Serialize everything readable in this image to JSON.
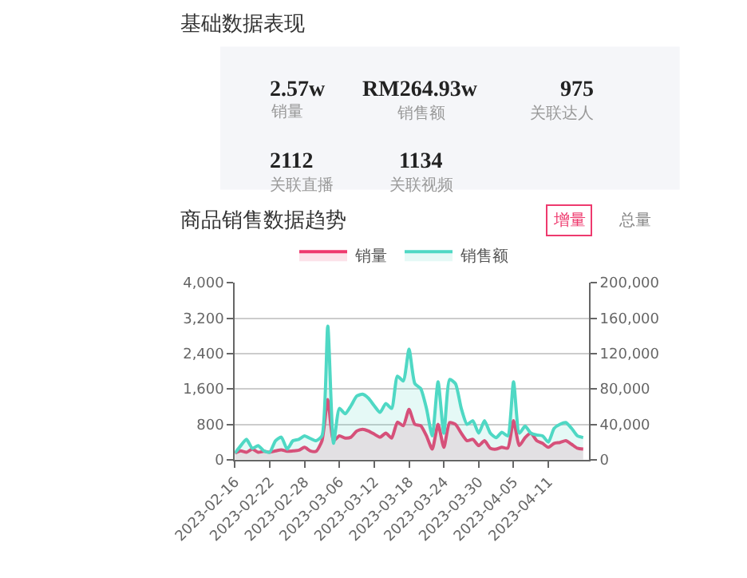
{
  "chart_data": [
    {
      "type": "other",
      "title": "基础数据表现",
      "annotations": [
        "2.57w",
        "销量",
        "RM264.93w",
        "销售额",
        "975",
        "关联达人",
        "2112",
        "关联直播",
        "1134",
        "关联视频"
      ]
    },
    {
      "type": "area",
      "title": "商品销售数据趋势",
      "annotations": [
        "增量",
        "总量"
      ],
      "x": [
        "2023-02-16",
        "2023-02-17",
        "2023-02-18",
        "2023-02-19",
        "2023-02-20",
        "2023-02-21",
        "2023-02-22",
        "2023-02-23",
        "2023-02-24",
        "2023-02-25",
        "2023-02-26",
        "2023-02-27",
        "2023-02-28",
        "2023-03-01",
        "2023-03-02",
        "2023-03-03",
        "2023-03-04",
        "2023-03-05",
        "2023-03-06",
        "2023-03-07",
        "2023-03-08",
        "2023-03-09",
        "2023-03-10",
        "2023-03-11",
        "2023-03-12",
        "2023-03-13",
        "2023-03-14",
        "2023-03-15",
        "2023-03-16",
        "2023-03-17",
        "2023-03-18",
        "2023-03-19",
        "2023-03-20",
        "2023-03-21",
        "2023-03-22",
        "2023-03-23",
        "2023-03-24",
        "2023-03-25",
        "2023-03-26",
        "2023-03-27",
        "2023-03-28",
        "2023-03-29",
        "2023-03-30",
        "2023-03-31",
        "2023-04-01",
        "2023-04-02",
        "2023-04-03",
        "2023-04-04",
        "2023-04-05",
        "2023-04-06",
        "2023-04-07",
        "2023-04-08",
        "2023-04-09",
        "2023-04-10",
        "2023-04-11",
        "2023-04-12",
        "2023-04-13",
        "2023-04-14",
        "2023-04-15",
        "2023-04-16",
        "2023-04-17"
      ],
      "series": [
        {
          "name": "销量",
          "color": "#ee3a6e",
          "values": [
            150,
            200,
            170,
            240,
            170,
            190,
            170,
            200,
            225,
            190,
            200,
            215,
            280,
            200,
            190,
            430,
            1360,
            430,
            540,
            490,
            510,
            650,
            690,
            650,
            580,
            510,
            600,
            490,
            850,
            770,
            1140,
            800,
            770,
            540,
            240,
            800,
            280,
            840,
            800,
            600,
            430,
            460,
            320,
            430,
            260,
            240,
            280,
            260,
            880,
            320,
            500,
            600,
            430,
            370,
            280,
            370,
            390,
            430,
            350,
            260,
            240
          ]
        },
        {
          "name": "销售额",
          "color": "#4fd8c4",
          "values": [
            7500,
            15800,
            23000,
            13000,
            15800,
            10000,
            8500,
            21500,
            25500,
            12000,
            21500,
            23000,
            27000,
            24000,
            21500,
            27000,
            151000,
            18500,
            58000,
            52000,
            61000,
            72000,
            74000,
            69500,
            61000,
            53500,
            63500,
            58000,
            94500,
            89000,
            125000,
            86000,
            80500,
            58000,
            27000,
            88000,
            30000,
            90700,
            86000,
            58000,
            40000,
            44000,
            30000,
            44000,
            30000,
            25000,
            31000,
            27000,
            88000,
            30000,
            38000,
            30000,
            28000,
            27000,
            20000,
            35500,
            40000,
            42000,
            35500,
            27000,
            25000
          ],
          "axis": "y2"
        }
      ],
      "xlim": [
        "2023-02-16",
        "2023-04-18"
      ],
      "xticks": [
        "2023-02-16",
        "2023-02-22",
        "2023-02-28",
        "2023-03-06",
        "2023-03-12",
        "2023-03-18",
        "2023-03-24",
        "2023-03-30",
        "2023-04-05",
        "2023-04-11"
      ],
      "ylim": [
        0,
        4000
      ],
      "yticks": [
        0,
        {
          "value": 800,
          "label": "800"
        },
        {
          "value": 1600,
          "label": "1,600"
        },
        {
          "value": 2400,
          "label": "2,400"
        },
        {
          "value": 3200,
          "label": "3,200"
        },
        {
          "value": 4000,
          "label": "4,000"
        }
      ],
      "y2lim": [
        0,
        200000
      ],
      "y2ticks": [
        0,
        {
          "value": 40000,
          "label": "40,000"
        },
        {
          "value": 80000,
          "label": "80,000"
        },
        {
          "value": 120000,
          "label": "120,000"
        },
        {
          "value": 160000,
          "label": "160,000"
        },
        {
          "value": 200000,
          "label": "200,000"
        }
      ],
      "grid": "y",
      "legend": "top",
      "line_style": "solid"
    }
  ]
}
